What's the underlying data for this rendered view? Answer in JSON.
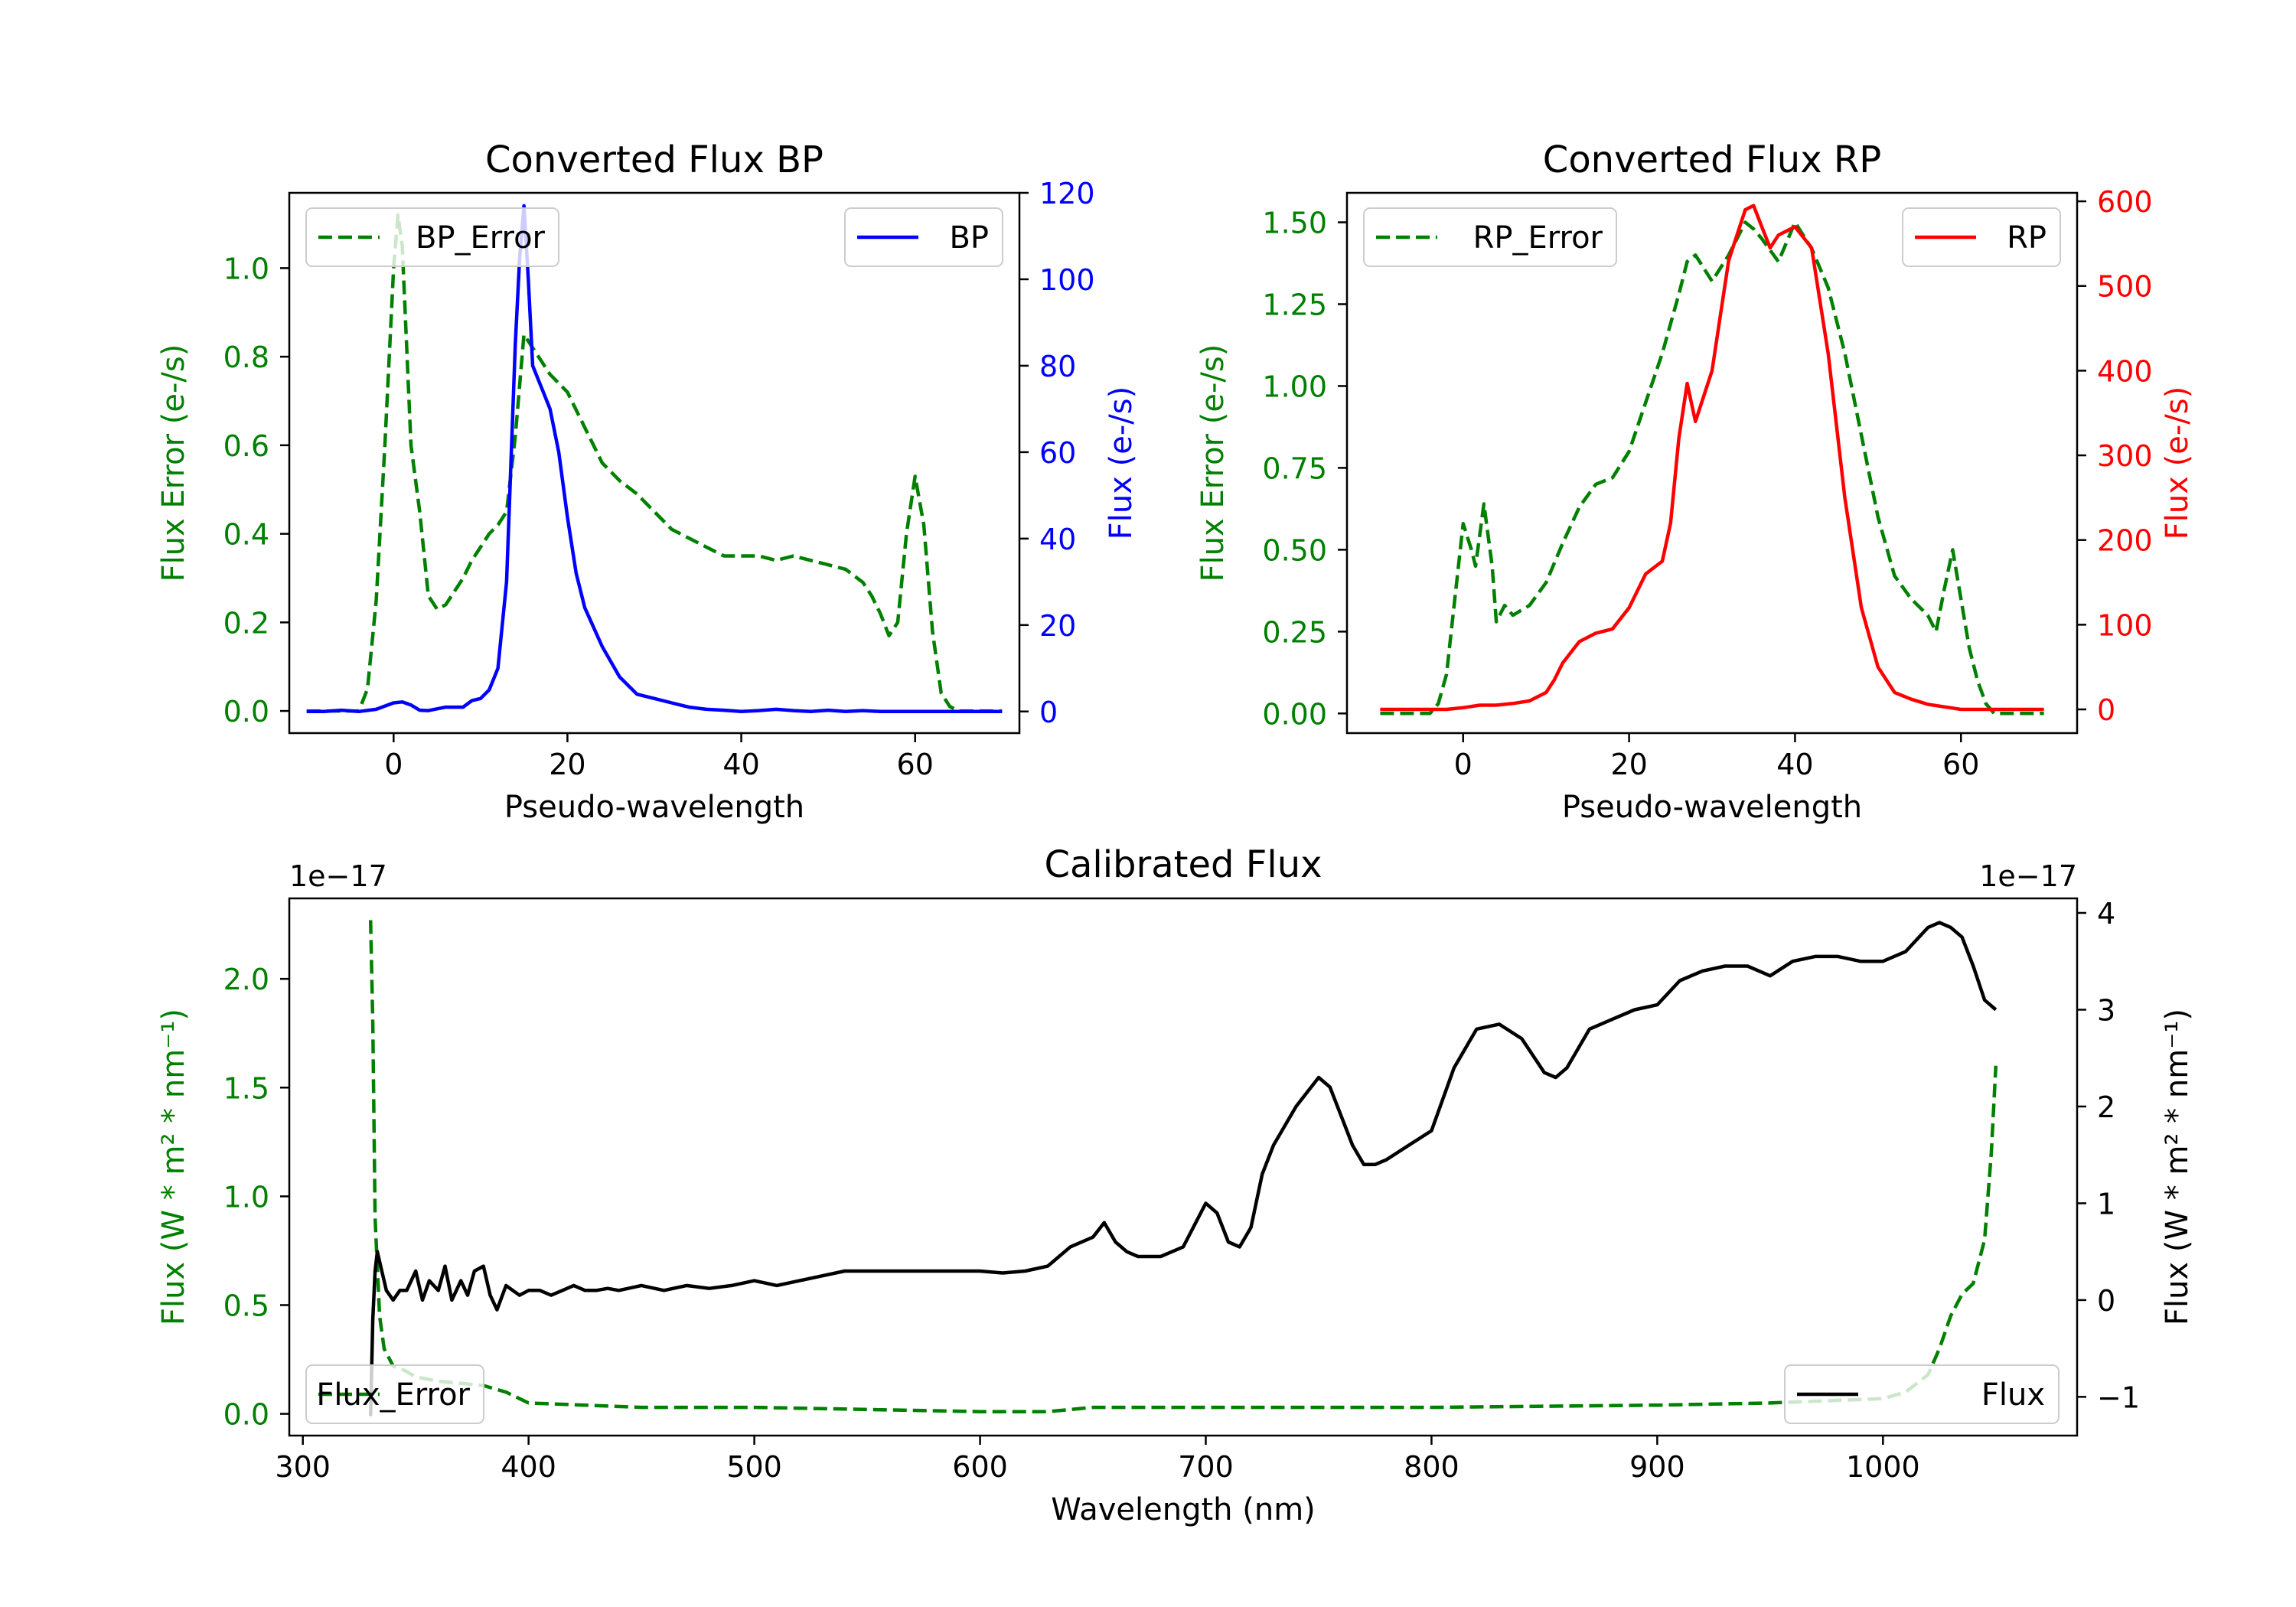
{
  "colors": {
    "error": "#008000",
    "bp": "#0000ff",
    "rp": "#ff0000",
    "flux": "#000000"
  },
  "chart_data": [
    {
      "type": "line",
      "title": "Converted Flux BP",
      "xlabel": "Pseudo-wavelength",
      "ylabel_left": "Flux Error (e-/s)",
      "ylabel_right": "Flux (e-/s)",
      "xlim": [
        -12,
        72
      ],
      "ylim_left": [
        -0.05,
        1.17
      ],
      "ylim_right": [
        -5,
        120
      ],
      "xticks": [
        0,
        20,
        40,
        60
      ],
      "xtick_labels": [
        "0",
        "20",
        "40",
        "60"
      ],
      "yticks_left": [
        0,
        0.2,
        0.4,
        0.6,
        0.8,
        1.0
      ],
      "ytick_labels_left": [
        "0.0",
        "0.2",
        "0.4",
        "0.6",
        "0.8",
        "1.0"
      ],
      "yticks_right": [
        0,
        20,
        40,
        60,
        80,
        100,
        120
      ],
      "ytick_labels_right": [
        "0",
        "20",
        "40",
        "60",
        "80",
        "100",
        "120"
      ],
      "legend_left": "top-left",
      "legend_right": "top-right",
      "series": [
        {
          "name": "BP_Error",
          "axis": "left",
          "style": "dashed",
          "color": "#008000",
          "x": [
            -10,
            -4,
            -3,
            -2,
            -1,
            0,
            0.5,
            1,
            2,
            3,
            4,
            5,
            6,
            7,
            8,
            9,
            10,
            11,
            12,
            13,
            14,
            15,
            16,
            17,
            18,
            19,
            20,
            22,
            24,
            26,
            28,
            30,
            32,
            34,
            36,
            38,
            40,
            42,
            44,
            46,
            48,
            50,
            52,
            54,
            55,
            56,
            57,
            58,
            59,
            60,
            61,
            62,
            63,
            64,
            65,
            66,
            68,
            70
          ],
          "y": [
            0,
            0,
            0.05,
            0.25,
            0.6,
            1.0,
            1.12,
            1.05,
            0.6,
            0.45,
            0.26,
            0.23,
            0.24,
            0.27,
            0.3,
            0.34,
            0.37,
            0.4,
            0.42,
            0.45,
            0.62,
            0.85,
            0.82,
            0.79,
            0.76,
            0.74,
            0.72,
            0.64,
            0.56,
            0.52,
            0.49,
            0.45,
            0.41,
            0.39,
            0.37,
            0.35,
            0.35,
            0.35,
            0.34,
            0.35,
            0.34,
            0.33,
            0.32,
            0.29,
            0.26,
            0.22,
            0.17,
            0.2,
            0.4,
            0.53,
            0.42,
            0.18,
            0.04,
            0.01,
            0,
            0,
            0,
            0
          ]
        },
        {
          "name": "BP",
          "axis": "right",
          "style": "solid",
          "color": "#0000ff",
          "x": [
            -10,
            -8,
            -6,
            -4,
            -2,
            0,
            1,
            2,
            3,
            4,
            6,
            8,
            9,
            10,
            11,
            12,
            13,
            14,
            14.5,
            15,
            15.5,
            16,
            17,
            18,
            19,
            20,
            21,
            22,
            24,
            26,
            28,
            30,
            32,
            34,
            36,
            38,
            40,
            42,
            44,
            46,
            48,
            50,
            52,
            54,
            56,
            58,
            60,
            62,
            64,
            66,
            68,
            70
          ],
          "y": [
            0,
            0,
            0.3,
            0,
            0.5,
            2,
            2.2,
            1.5,
            0.3,
            0.2,
            1,
            1,
            2.5,
            3,
            5,
            10,
            30,
            85,
            105,
            117,
            100,
            80,
            75,
            70,
            60,
            45,
            32,
            24,
            15,
            8,
            4,
            3,
            2,
            1,
            0.5,
            0.3,
            0,
            0.2,
            0.5,
            0.2,
            0,
            0.3,
            0,
            0.2,
            0,
            0,
            0,
            0,
            0,
            0,
            0,
            0
          ]
        }
      ]
    },
    {
      "type": "line",
      "title": "Converted Flux RP",
      "xlabel": "Pseudo-wavelength",
      "ylabel_left": "Flux Error (e-/s)",
      "ylabel_right": "Flux (e-/s)",
      "xlim": [
        -14,
        74
      ],
      "ylim_left": [
        -0.06,
        1.59
      ],
      "ylim_right": [
        -28,
        610
      ],
      "xticks": [
        0,
        20,
        40,
        60
      ],
      "xtick_labels": [
        "0",
        "20",
        "40",
        "60"
      ],
      "yticks_left": [
        0,
        0.25,
        0.5,
        0.75,
        1.0,
        1.25,
        1.5
      ],
      "ytick_labels_left": [
        "0.00",
        "0.25",
        "0.50",
        "0.75",
        "1.00",
        "1.25",
        "1.50"
      ],
      "yticks_right": [
        0,
        100,
        200,
        300,
        400,
        500,
        600
      ],
      "ytick_labels_right": [
        "0",
        "100",
        "200",
        "300",
        "400",
        "500",
        "600"
      ],
      "legend_left": "top-left",
      "legend_right": "top-right",
      "series": [
        {
          "name": "RP_Error",
          "axis": "left",
          "style": "dashed",
          "color": "#008000",
          "x": [
            -10,
            -4,
            -3,
            -2,
            -1,
            0,
            1,
            1.5,
            2.5,
            3.5,
            4,
            5,
            6,
            8,
            10,
            12,
            14,
            16,
            18,
            20,
            22,
            24,
            26,
            27,
            28,
            30,
            32,
            34,
            35,
            36,
            38,
            40,
            42,
            44,
            46,
            48,
            50,
            52,
            54,
            56,
            57,
            58,
            59,
            60,
            61,
            62,
            63,
            64,
            66,
            70
          ],
          "y": [
            0,
            0,
            0.03,
            0.12,
            0.35,
            0.58,
            0.5,
            0.45,
            0.64,
            0.45,
            0.28,
            0.33,
            0.3,
            0.33,
            0.4,
            0.52,
            0.63,
            0.7,
            0.72,
            0.8,
            0.95,
            1.1,
            1.28,
            1.38,
            1.4,
            1.32,
            1.4,
            1.5,
            1.48,
            1.45,
            1.38,
            1.5,
            1.42,
            1.3,
            1.1,
            0.85,
            0.6,
            0.42,
            0.35,
            0.3,
            0.25,
            0.38,
            0.5,
            0.35,
            0.2,
            0.1,
            0.03,
            0,
            0,
            0
          ]
        },
        {
          "name": "RP",
          "axis": "right",
          "style": "solid",
          "color": "#ff0000",
          "x": [
            -10,
            -6,
            -2,
            0,
            2,
            4,
            6,
            8,
            10,
            11,
            12,
            14,
            16,
            18,
            20,
            22,
            24,
            25,
            26,
            27,
            28,
            30,
            32,
            34,
            35,
            36,
            37,
            38,
            40,
            42,
            44,
            46,
            48,
            50,
            52,
            54,
            56,
            58,
            60,
            62,
            65,
            70
          ],
          "y": [
            0,
            0,
            0,
            2,
            5,
            5,
            7,
            10,
            20,
            35,
            55,
            80,
            90,
            95,
            120,
            160,
            175,
            220,
            320,
            385,
            340,
            400,
            530,
            590,
            595,
            570,
            545,
            560,
            570,
            545,
            420,
            250,
            120,
            50,
            20,
            12,
            6,
            3,
            0,
            0,
            0,
            0
          ]
        }
      ]
    },
    {
      "type": "line",
      "title": "Calibrated Flux",
      "xlabel": "Wavelength (nm)",
      "ylabel_left": "Flux (W * m² * nm⁻¹)",
      "ylabel_right": "Flux (W * m² * nm⁻¹)",
      "offset_left": "1e−17",
      "offset_right": "1e−17",
      "xlim": [
        294,
        1086
      ],
      "ylim_left": [
        -0.1,
        2.37
      ],
      "ylim_right": [
        -1.4,
        4.15
      ],
      "xticks": [
        300,
        400,
        500,
        600,
        700,
        800,
        900,
        1000
      ],
      "xtick_labels": [
        "300",
        "400",
        "500",
        "600",
        "700",
        "800",
        "900",
        "1000"
      ],
      "yticks_left": [
        0,
        0.5,
        1.0,
        1.5,
        2.0
      ],
      "ytick_labels_left": [
        "0.0",
        "0.5",
        "1.0",
        "1.5",
        "2.0"
      ],
      "yticks_right": [
        -1,
        0,
        1,
        2,
        3,
        4
      ],
      "ytick_labels_right": [
        "−1",
        "0",
        "1",
        "2",
        "3",
        "4"
      ],
      "legend_left": "bottom-left",
      "legend_right": "bottom-right",
      "series": [
        {
          "name": "Flux_Error",
          "axis": "left",
          "style": "dashed",
          "color": "#008000",
          "x": [
            330,
            331,
            332,
            334,
            336,
            340,
            345,
            350,
            360,
            370,
            380,
            390,
            400,
            450,
            500,
            550,
            600,
            630,
            650,
            700,
            800,
            900,
            950,
            1000,
            1010,
            1020,
            1025,
            1030,
            1035,
            1040,
            1045,
            1048,
            1050
          ],
          "y": [
            2.27,
            1.8,
            0.9,
            0.45,
            0.3,
            0.22,
            0.2,
            0.17,
            0.15,
            0.14,
            0.13,
            0.1,
            0.05,
            0.03,
            0.03,
            0.02,
            0.01,
            0.01,
            0.03,
            0.03,
            0.03,
            0.04,
            0.05,
            0.07,
            0.1,
            0.18,
            0.3,
            0.45,
            0.55,
            0.6,
            0.8,
            1.2,
            1.6
          ]
        },
        {
          "name": "Flux",
          "axis": "right",
          "style": "solid",
          "color": "#000000",
          "x": [
            330,
            331,
            332,
            333,
            335,
            337,
            340,
            343,
            346,
            350,
            353,
            356,
            360,
            363,
            366,
            370,
            373,
            376,
            380,
            383,
            386,
            390,
            393,
            396,
            400,
            405,
            410,
            415,
            420,
            425,
            430,
            435,
            440,
            450,
            460,
            470,
            480,
            490,
            500,
            510,
            520,
            530,
            540,
            560,
            580,
            600,
            610,
            620,
            630,
            640,
            650,
            655,
            660,
            665,
            670,
            680,
            690,
            700,
            705,
            710,
            715,
            720,
            725,
            730,
            740,
            750,
            755,
            760,
            765,
            770,
            775,
            780,
            790,
            800,
            810,
            820,
            830,
            840,
            850,
            855,
            860,
            870,
            880,
            890,
            900,
            910,
            920,
            930,
            940,
            950,
            960,
            970,
            980,
            990,
            1000,
            1010,
            1020,
            1025,
            1030,
            1035,
            1040,
            1045,
            1050
          ],
          "y": [
            -1.2,
            -0.2,
            0.3,
            0.5,
            0.3,
            0.1,
            0,
            0.1,
            0.1,
            0.3,
            0,
            0.2,
            0.1,
            0.35,
            0,
            0.2,
            0.05,
            0.3,
            0.35,
            0.05,
            -0.1,
            0.15,
            0.1,
            0.05,
            0.1,
            0.1,
            0.05,
            0.1,
            0.15,
            0.1,
            0.1,
            0.12,
            0.1,
            0.15,
            0.1,
            0.15,
            0.12,
            0.15,
            0.2,
            0.15,
            0.2,
            0.25,
            0.3,
            0.3,
            0.3,
            0.3,
            0.28,
            0.3,
            0.35,
            0.55,
            0.65,
            0.8,
            0.6,
            0.5,
            0.45,
            0.45,
            0.55,
            1.0,
            0.9,
            0.6,
            0.55,
            0.75,
            1.3,
            1.6,
            2.0,
            2.3,
            2.2,
            1.9,
            1.6,
            1.4,
            1.4,
            1.45,
            1.6,
            1.75,
            2.4,
            2.8,
            2.85,
            2.7,
            2.35,
            2.3,
            2.4,
            2.8,
            2.9,
            3.0,
            3.05,
            3.3,
            3.4,
            3.45,
            3.45,
            3.35,
            3.5,
            3.55,
            3.55,
            3.5,
            3.5,
            3.6,
            3.85,
            3.9,
            3.85,
            3.75,
            3.45,
            3.1,
            3.0
          ]
        }
      ]
    }
  ]
}
